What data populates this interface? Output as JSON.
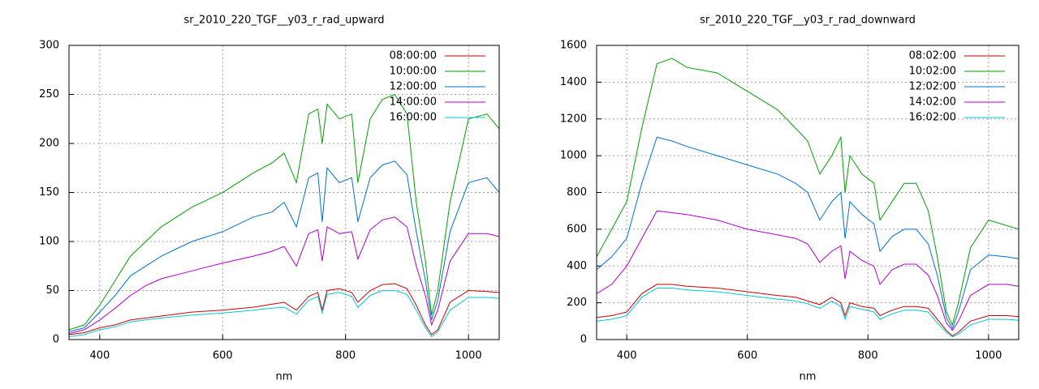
{
  "chart_data": [
    {
      "type": "line",
      "title": "sr_2010_220_TGF__y03_r_rad_upward",
      "x_label": "nm",
      "x": [
        350,
        375,
        400,
        425,
        450,
        475,
        500,
        550,
        600,
        650,
        680,
        700,
        720,
        740,
        755,
        762,
        770,
        790,
        810,
        820,
        840,
        860,
        880,
        900,
        915,
        930,
        940,
        950,
        970,
        1000,
        1030,
        1050
      ],
      "xlim": [
        350,
        1050
      ],
      "xticks": [
        400,
        600,
        800,
        1000
      ],
      "ylim": [
        0,
        300
      ],
      "yticks": [
        0,
        50,
        100,
        150,
        200,
        250,
        300
      ],
      "grid": true,
      "legend": "top-right",
      "series": [
        {
          "name": "08:00:00",
          "color": "#cc0000",
          "values": [
            5,
            7,
            12,
            15,
            20,
            22,
            24,
            28,
            30,
            33,
            36,
            38,
            30,
            44,
            48,
            30,
            50,
            52,
            48,
            38,
            50,
            56,
            57,
            52,
            35,
            15,
            5,
            10,
            38,
            50,
            49,
            48
          ]
        },
        {
          "name": "10:00:00",
          "color": "#00a000",
          "values": [
            10,
            15,
            35,
            60,
            85,
            100,
            115,
            135,
            150,
            170,
            180,
            190,
            160,
            230,
            235,
            200,
            240,
            225,
            230,
            160,
            225,
            245,
            250,
            230,
            140,
            80,
            25,
            50,
            140,
            225,
            230,
            215
          ]
        },
        {
          "name": "12:00:00",
          "color": "#0070d0",
          "values": [
            8,
            12,
            28,
            45,
            65,
            75,
            85,
            100,
            110,
            125,
            130,
            140,
            115,
            165,
            170,
            120,
            175,
            160,
            165,
            120,
            165,
            178,
            182,
            168,
            110,
            60,
            20,
            40,
            110,
            160,
            165,
            150
          ]
        },
        {
          "name": "14:00:00",
          "color": "#b000d0",
          "values": [
            6,
            10,
            20,
            32,
            45,
            55,
            62,
            70,
            78,
            85,
            90,
            95,
            75,
            108,
            112,
            80,
            115,
            108,
            110,
            82,
            112,
            122,
            125,
            115,
            75,
            45,
            15,
            30,
            80,
            108,
            108,
            105
          ]
        },
        {
          "name": "16:00:00",
          "color": "#00c8d0",
          "values": [
            3,
            5,
            10,
            13,
            18,
            20,
            22,
            25,
            27,
            30,
            32,
            33,
            26,
            40,
            44,
            27,
            46,
            48,
            44,
            33,
            45,
            50,
            50,
            46,
            30,
            12,
            3,
            8,
            30,
            43,
            43,
            42
          ]
        }
      ]
    },
    {
      "type": "line",
      "title": "sr_2010_220_TGF__y03_r_rad_downward",
      "x_label": "nm",
      "x": [
        350,
        375,
        400,
        425,
        450,
        475,
        500,
        550,
        600,
        650,
        680,
        700,
        720,
        740,
        755,
        762,
        770,
        790,
        810,
        820,
        840,
        860,
        880,
        900,
        915,
        930,
        940,
        950,
        970,
        1000,
        1030,
        1050
      ],
      "xlim": [
        350,
        1050
      ],
      "xticks": [
        400,
        600,
        800,
        1000
      ],
      "ylim": [
        0,
        1600
      ],
      "yticks": [
        0,
        200,
        400,
        600,
        800,
        1000,
        1200,
        1400,
        1600
      ],
      "grid": true,
      "legend": "top-right",
      "series": [
        {
          "name": "08:02:00",
          "color": "#cc0000",
          "values": [
            120,
            130,
            150,
            250,
            300,
            300,
            290,
            280,
            260,
            240,
            230,
            210,
            190,
            230,
            200,
            130,
            200,
            180,
            170,
            130,
            160,
            180,
            180,
            170,
            110,
            50,
            20,
            40,
            100,
            130,
            130,
            125
          ]
        },
        {
          "name": "10:02:00",
          "color": "#00a000",
          "values": [
            450,
            600,
            750,
            1150,
            1500,
            1530,
            1480,
            1450,
            1350,
            1250,
            1150,
            1080,
            900,
            1000,
            1100,
            800,
            1000,
            900,
            850,
            650,
            750,
            850,
            850,
            700,
            450,
            150,
            80,
            200,
            500,
            650,
            620,
            600
          ]
        },
        {
          "name": "12:02:00",
          "color": "#0070d0",
          "values": [
            380,
            450,
            550,
            850,
            1100,
            1080,
            1050,
            1000,
            950,
            900,
            850,
            800,
            650,
            750,
            800,
            550,
            750,
            680,
            630,
            480,
            560,
            600,
            600,
            520,
            350,
            120,
            60,
            150,
            380,
            460,
            450,
            440
          ]
        },
        {
          "name": "14:02:00",
          "color": "#b000d0",
          "values": [
            250,
            300,
            400,
            550,
            700,
            690,
            680,
            650,
            600,
            570,
            550,
            520,
            420,
            480,
            510,
            330,
            480,
            430,
            400,
            300,
            380,
            410,
            410,
            350,
            240,
            90,
            50,
            100,
            240,
            300,
            300,
            290
          ]
        },
        {
          "name": "16:02:00",
          "color": "#00c8d0",
          "values": [
            100,
            110,
            130,
            230,
            280,
            280,
            270,
            260,
            240,
            220,
            210,
            195,
            170,
            210,
            180,
            110,
            180,
            165,
            150,
            110,
            140,
            160,
            160,
            150,
            90,
            40,
            15,
            30,
            80,
            110,
            110,
            105
          ]
        }
      ]
    }
  ]
}
